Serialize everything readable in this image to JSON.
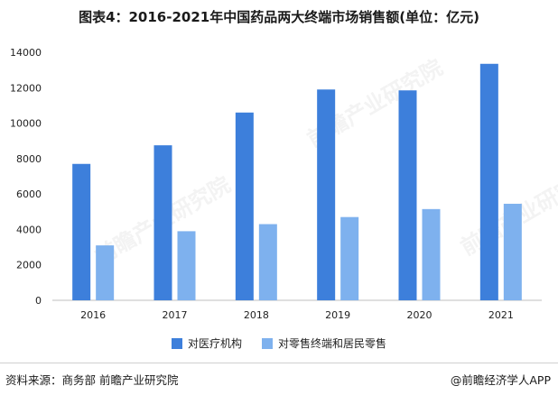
{
  "title": "图表4：2016-2021年中国药品两大终端市场销售额(单位：亿元)",
  "source": "资料来源：商务部 前瞻产业研究院",
  "brand": "@前瞻经济学人APP",
  "watermark": "前瞻产业研究院",
  "colors": {
    "series1": "#3D7FDB",
    "series2": "#7EB1EE",
    "axis": "#bfbfbf"
  },
  "chart_data": {
    "type": "bar",
    "categories": [
      "2016",
      "2017",
      "2018",
      "2019",
      "2020",
      "2021"
    ],
    "series": [
      {
        "name": "对医疗机构",
        "values": [
          7700,
          8750,
          10600,
          11900,
          11850,
          13350
        ]
      },
      {
        "name": "对零售终端和居民零售",
        "values": [
          3100,
          3900,
          4300,
          4700,
          5150,
          5450
        ]
      }
    ],
    "ylim": [
      0,
      14000
    ],
    "yticks": [
      0,
      2000,
      4000,
      6000,
      8000,
      10000,
      12000,
      14000
    ],
    "grid": false,
    "legend": "bottom-center"
  }
}
